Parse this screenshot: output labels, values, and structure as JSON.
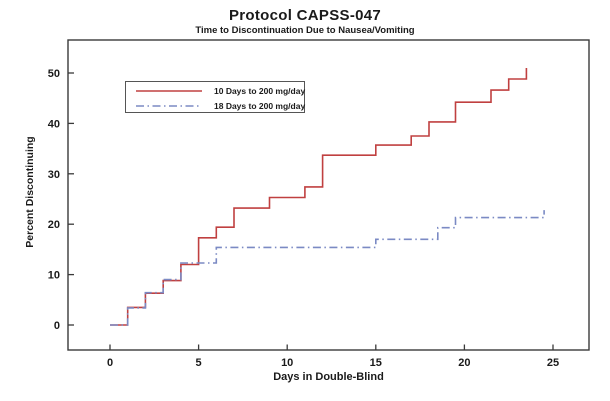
{
  "chart_data": {
    "type": "line",
    "subtype": "step-survival",
    "title": "Protocol CAPSS-047",
    "subtitle": "Time to Discontinuation Due to Nausea/Vomiting",
    "xlabel": "Days in Double-Blind",
    "ylabel": "Percent Discontinuing",
    "x_ticks": [
      0,
      5,
      10,
      15,
      20,
      25
    ],
    "y_ticks": [
      0,
      10,
      20,
      30,
      40,
      50
    ],
    "xlim": [
      0,
      25
    ],
    "ylim": [
      0,
      50
    ],
    "grid": "off",
    "legend_position": "upper-left-inside",
    "series": [
      {
        "name": "10 Days to 200 mg/day",
        "color": "#c04040",
        "style": "solid",
        "points": [
          [
            0,
            0
          ],
          [
            1,
            3.5
          ],
          [
            2,
            6.3
          ],
          [
            3,
            8.8
          ],
          [
            4,
            12.0
          ],
          [
            5,
            17.3
          ],
          [
            6,
            19.4
          ],
          [
            7,
            23.2
          ],
          [
            9,
            25.3
          ],
          [
            11,
            27.4
          ],
          [
            12,
            33.7
          ],
          [
            15,
            35.7
          ],
          [
            17,
            37.5
          ],
          [
            18,
            40.3
          ],
          [
            19.5,
            44.2
          ],
          [
            21.5,
            46.6
          ],
          [
            22.5,
            48.8
          ],
          [
            23.5,
            51.0
          ]
        ]
      },
      {
        "name": "18 Days to 200 mg/day",
        "color": "#7b8ac4",
        "style": "dash-dot",
        "points": [
          [
            0,
            0
          ],
          [
            1,
            3.4
          ],
          [
            2,
            6.4
          ],
          [
            3,
            9.0
          ],
          [
            4,
            12.3
          ],
          [
            6,
            15.4
          ],
          [
            15,
            17.0
          ],
          [
            18.5,
            19.3
          ],
          [
            19.5,
            21.3
          ],
          [
            24.5,
            22.8
          ]
        ]
      }
    ]
  }
}
